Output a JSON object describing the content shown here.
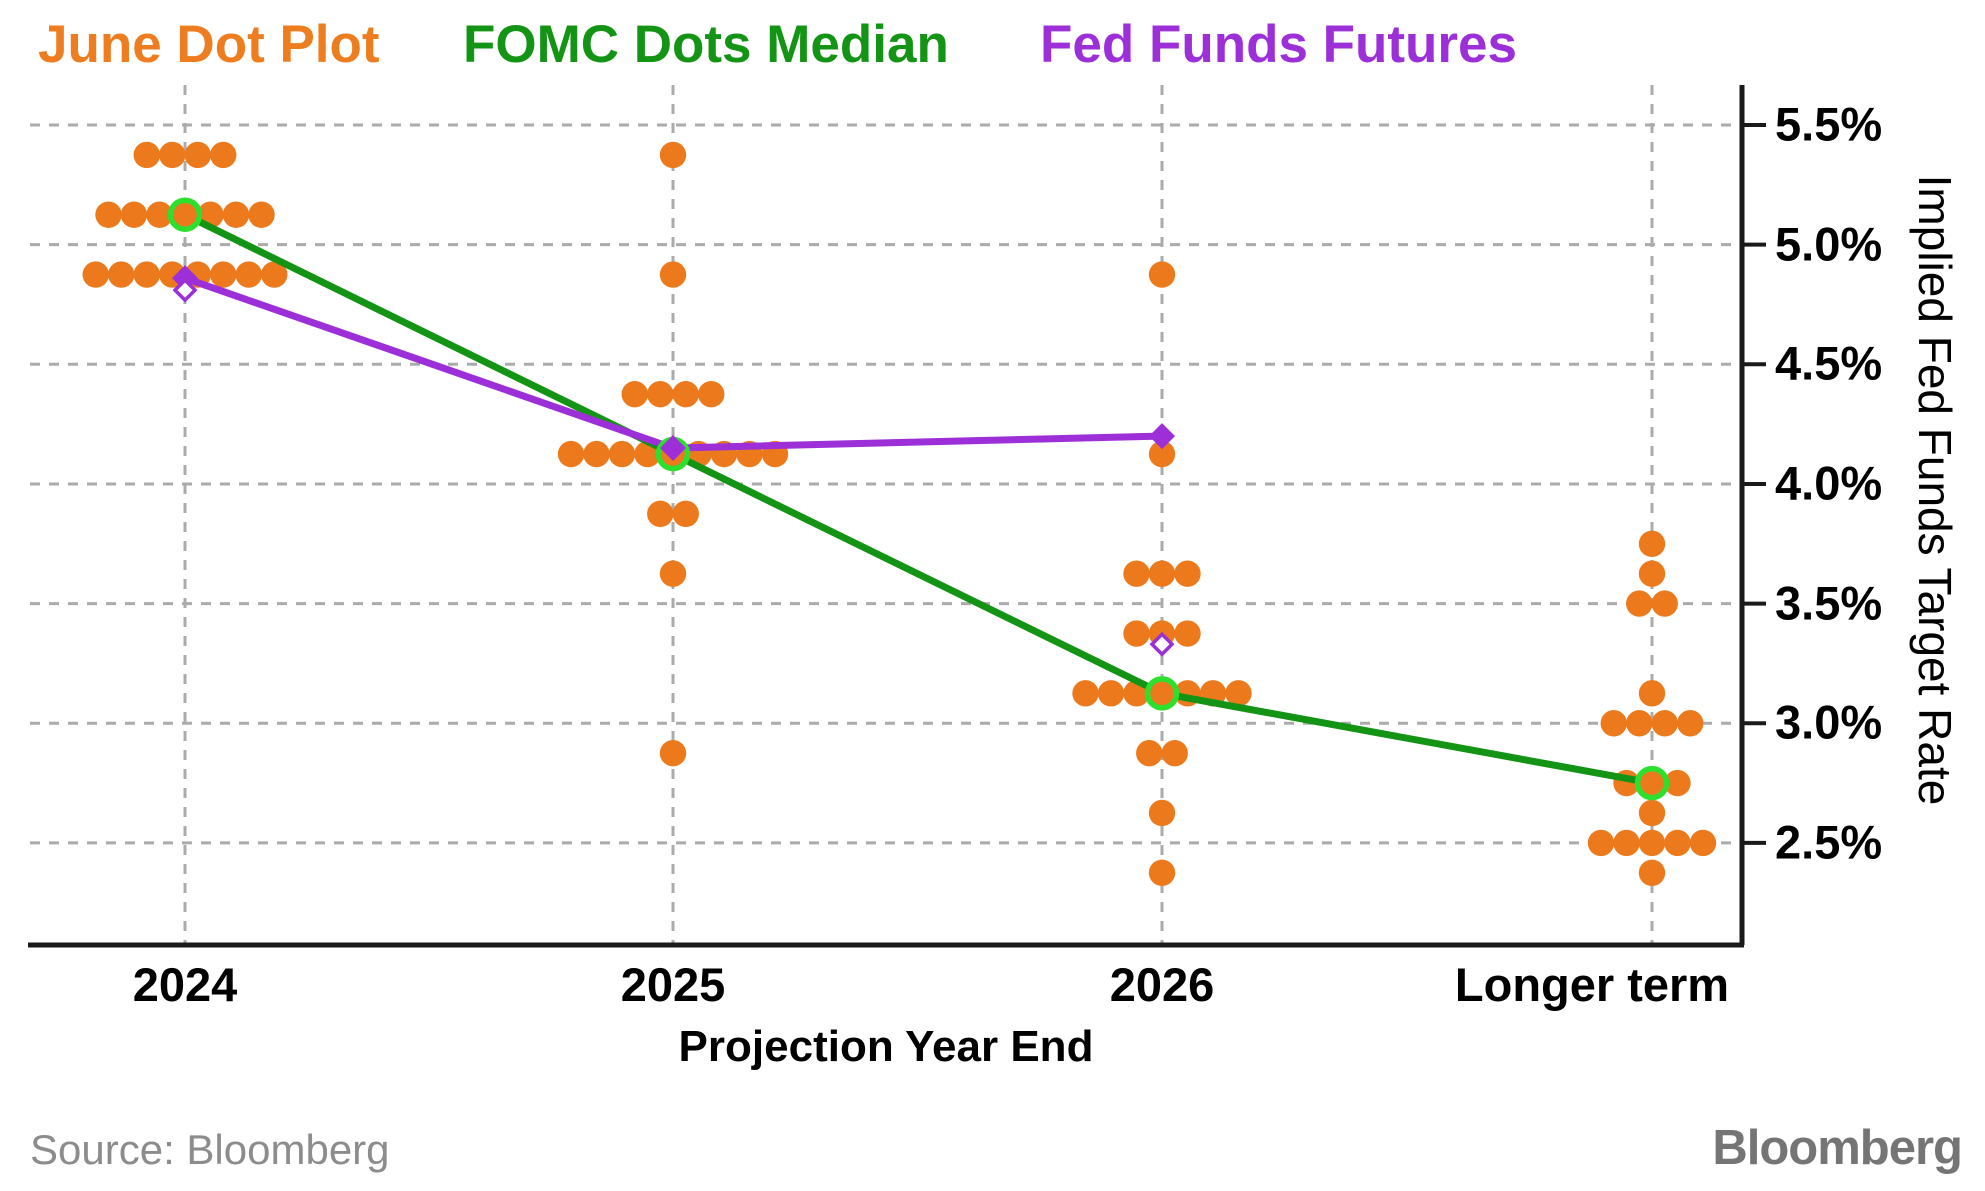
{
  "legend": [
    {
      "label": "June Dot Plot",
      "color": "#ED7D1F",
      "marker": "dot"
    },
    {
      "label": "FOMC Dots Median",
      "color": "#149414",
      "marker": "line"
    },
    {
      "label": "Fed Funds Futures",
      "color": "#9C2FD8",
      "marker": "line"
    }
  ],
  "chart_data": {
    "type": "scatter",
    "title": "",
    "categories": [
      "2024",
      "2025",
      "2026",
      "Longer term"
    ],
    "xlabel": "Projection Year End",
    "ylabel": "Implied Fed Funds Target Rate",
    "y_ticks": [
      {
        "value": 5.5,
        "label": "5.5%"
      },
      {
        "value": 5.0,
        "label": "5.0%"
      },
      {
        "value": 4.5,
        "label": "4.5%"
      },
      {
        "value": 4.0,
        "label": "4.0%"
      },
      {
        "value": 3.5,
        "label": "3.5%"
      },
      {
        "value": 3.0,
        "label": "3.0%"
      },
      {
        "value": 2.5,
        "label": "2.5%"
      }
    ],
    "ylim": [
      2.1,
      5.67
    ],
    "grid": true,
    "legend_position": "top",
    "dot_series": {
      "name": "June Dot Plot",
      "color": "#EC7A1C",
      "clusters": [
        {
          "category": "2024",
          "rows": [
            {
              "value": 5.375,
              "count": 4
            },
            {
              "value": 5.125,
              "count": 7
            },
            {
              "value": 4.875,
              "count": 8
            }
          ]
        },
        {
          "category": "2025",
          "rows": [
            {
              "value": 5.375,
              "count": 1
            },
            {
              "value": 4.875,
              "count": 1
            },
            {
              "value": 4.375,
              "count": 4
            },
            {
              "value": 4.125,
              "count": 9
            },
            {
              "value": 3.875,
              "count": 2
            },
            {
              "value": 3.625,
              "count": 1
            },
            {
              "value": 2.875,
              "count": 1
            }
          ]
        },
        {
          "category": "2026",
          "rows": [
            {
              "value": 4.875,
              "count": 1
            },
            {
              "value": 4.125,
              "count": 1
            },
            {
              "value": 3.625,
              "count": 3
            },
            {
              "value": 3.375,
              "count": 3
            },
            {
              "value": 3.125,
              "count": 7
            },
            {
              "value": 2.875,
              "count": 2
            },
            {
              "value": 2.625,
              "count": 1
            },
            {
              "value": 2.375,
              "count": 1
            }
          ]
        },
        {
          "category": "Longer term",
          "rows": [
            {
              "value": 3.75,
              "count": 1
            },
            {
              "value": 3.625,
              "count": 1
            },
            {
              "value": 3.5,
              "count": 2
            },
            {
              "value": 3.125,
              "count": 1
            },
            {
              "value": 3.0,
              "count": 4
            },
            {
              "value": 2.75,
              "count": 3
            },
            {
              "value": 2.625,
              "count": 1
            },
            {
              "value": 2.5,
              "count": 5
            },
            {
              "value": 2.375,
              "count": 1
            }
          ]
        }
      ]
    },
    "series": [
      {
        "name": "FOMC Dots Median",
        "color": "#149414",
        "marker": "open-circle",
        "marker_color": "#2EE02E",
        "points": [
          {
            "category": "2024",
            "value": 5.125
          },
          {
            "category": "2025",
            "value": 4.125
          },
          {
            "category": "2026",
            "value": 3.125
          },
          {
            "category": "Longer term",
            "value": 2.75
          }
        ]
      },
      {
        "name": "Fed Funds Futures",
        "color": "#9C2FD8",
        "marker": "diamond",
        "points": [
          {
            "category": "2024",
            "value": 4.86
          },
          {
            "category": "2025",
            "value": 4.15
          },
          {
            "category": "2026",
            "value": 4.2
          }
        ],
        "open_points": [
          {
            "category": "2024",
            "value": 4.81
          },
          {
            "category": "2026",
            "value": 3.33
          }
        ]
      }
    ]
  },
  "source": "Source: Bloomberg",
  "brand": "Bloomberg"
}
